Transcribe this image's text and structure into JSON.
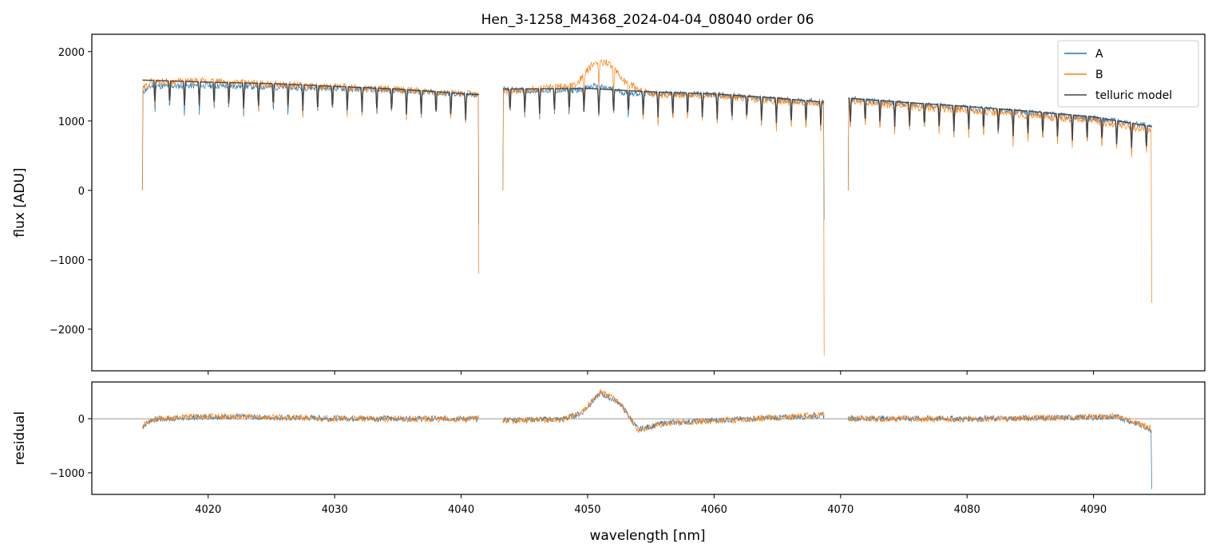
{
  "chart_data": [
    {
      "type": "line",
      "title": "Hen_3-1258_M4368_2024-04-04_08040  order 06",
      "ylabel": "flux [ADU]",
      "xlim": [
        4010.8,
        4098.8
      ],
      "ylim": [
        -2600,
        2250
      ],
      "x_ticks": [
        4020,
        4030,
        4040,
        4050,
        4060,
        4070,
        4080,
        4090
      ],
      "y_ticks": [
        2000,
        1000,
        0,
        -1000,
        -2000
      ],
      "legend_position": "top-right",
      "segments": [
        [
          4014.8,
          4041.4
        ],
        [
          4043.3,
          4068.7
        ],
        [
          4070.6,
          4094.6
        ]
      ],
      "series": [
        {
          "name": "A",
          "color": "#1f77b4",
          "x": [
            4014.8,
            4015.5,
            4020,
            4025,
            4030,
            4035,
            4041.4,
            4043.3,
            4045,
            4049,
            4050.5,
            4052,
            4053,
            4055,
            4060,
            4065,
            4068.7,
            4070.6,
            4072,
            4075,
            4080,
            4085,
            4090,
            4094.6
          ],
          "y": [
            1420,
            1500,
            1510,
            1490,
            1470,
            1440,
            1370,
            1460,
            1440,
            1440,
            1500,
            1460,
            1400,
            1400,
            1380,
            1310,
            1270,
            1320,
            1290,
            1250,
            1190,
            1120,
            1040,
            920
          ]
        },
        {
          "name": "B",
          "color": "#ff7f0e",
          "x": [
            4014.8,
            4015.5,
            4020,
            4025,
            4030,
            4035,
            4041.4,
            4043.3,
            4045,
            4049,
            4050.5,
            4051.5,
            4053,
            4055,
            4060,
            4065,
            4068.7,
            4070.6,
            4072,
            4075,
            4080,
            4085,
            4090,
            4094.6
          ],
          "y": [
            1450,
            1570,
            1570,
            1530,
            1490,
            1450,
            1380,
            1440,
            1440,
            1520,
            1830,
            1860,
            1560,
            1380,
            1370,
            1290,
            1250,
            1300,
            1260,
            1210,
            1160,
            1080,
            1000,
            860
          ]
        },
        {
          "name": "telluric model",
          "color": "#444444",
          "x": [
            4014.8,
            4020,
            4025,
            4030,
            4035,
            4041.4,
            4043.3,
            4050,
            4055,
            4060,
            4065,
            4068.7,
            4070.6,
            4075,
            4080,
            4085,
            4090,
            4094.6
          ],
          "y": [
            1590,
            1560,
            1540,
            1500,
            1460,
            1380,
            1460,
            1470,
            1420,
            1390,
            1330,
            1270,
            1330,
            1270,
            1210,
            1140,
            1060,
            920
          ]
        }
      ]
    },
    {
      "type": "line",
      "xlabel": "wavelength [nm]",
      "ylabel": "residual",
      "xlim": [
        4010.8,
        4098.8
      ],
      "ylim": [
        -1400,
        680
      ],
      "x_ticks": [
        4020,
        4030,
        4040,
        4050,
        4060,
        4070,
        4080,
        4090
      ],
      "y_ticks": [
        0,
        -1000
      ],
      "zero_line": true,
      "series": [
        {
          "color": "#1f77b4",
          "x": [
            4014.8,
            4015.5,
            4020,
            4030,
            4041.4,
            4043.3,
            4048,
            4049.5,
            4051,
            4052.5,
            4054,
            4056,
            4060,
            4068.7,
            4070.6,
            4080,
            4092,
            4094.6
          ],
          "y": [
            -150,
            -20,
            40,
            10,
            0,
            -20,
            -10,
            100,
            470,
            300,
            -200,
            -80,
            -30,
            60,
            10,
            0,
            30,
            -200
          ]
        },
        {
          "color": "#ff7f0e",
          "x": [
            4014.8,
            4015.5,
            4020,
            4030,
            4041.4,
            4043.3,
            4048,
            4049.5,
            4051,
            4052.5,
            4054,
            4056,
            4060,
            4068.7,
            4070.6,
            4080,
            4092,
            4094.6
          ],
          "y": [
            -140,
            -10,
            50,
            0,
            -10,
            -30,
            -20,
            120,
            500,
            320,
            -220,
            -90,
            -40,
            70,
            0,
            -10,
            40,
            -180
          ]
        }
      ]
    }
  ]
}
